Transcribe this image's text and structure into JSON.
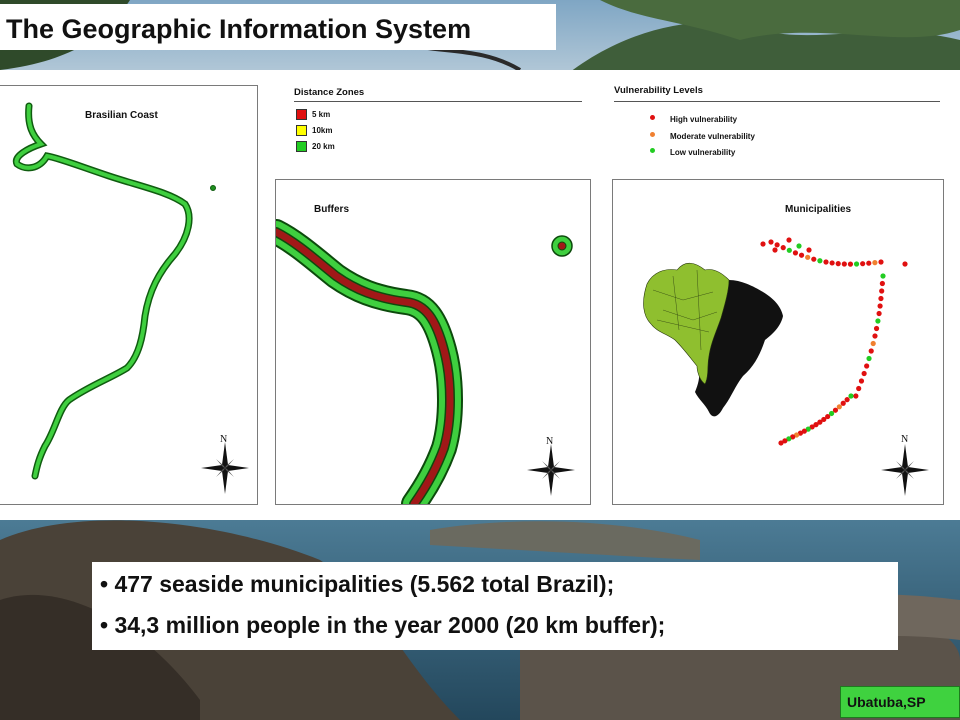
{
  "title": "The Geographic Information System",
  "maps": {
    "coast_label": "Brasilian Coast",
    "buffers_label": "Buffers",
    "municipalities_label": "Municipalities",
    "north": "N"
  },
  "distance_zones": {
    "header": "Distance  Zones",
    "items": [
      {
        "label": "5 km",
        "color": "#e01010"
      },
      {
        "label": "10km",
        "color": "#ffff00"
      },
      {
        "label": "20 km",
        "color": "#22cc22"
      }
    ]
  },
  "vulnerability": {
    "header": "Vulnerability Levels",
    "items": [
      {
        "label": "High vulnerability",
        "color": "#e01010"
      },
      {
        "label": "Moderate vulnerability",
        "color": "#f08030"
      },
      {
        "label": "Low vulnerability",
        "color": "#22cc22"
      }
    ]
  },
  "bullets": [
    "• 477 seaside municipalities (5.562 total Brazil);",
    "• 34,3 million people in the year 2000 (20 km buffer);"
  ],
  "location_badge": "Ubatuba,SP"
}
